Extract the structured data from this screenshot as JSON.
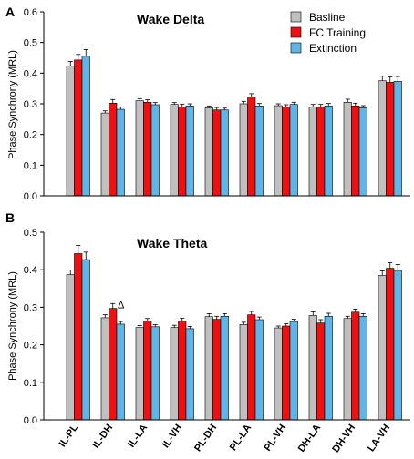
{
  "legend": {
    "placement": "top-right",
    "entries": [
      {
        "name": "Basline",
        "color": "#c0c0c0"
      },
      {
        "name": "FC Training",
        "color": "#ee1111"
      },
      {
        "name": "Extinction",
        "color": "#5fb6e6"
      }
    ]
  },
  "chart_data": [
    {
      "type": "bar",
      "panel_letter": "A",
      "title": "Wake Delta",
      "xlabel": "",
      "ylabel": "Phase Synchrony (MRL)",
      "ylim": [
        0.0,
        0.6
      ],
      "yticks": [
        "0.0",
        "0.1",
        "0.2",
        "0.3",
        "0.4",
        "0.5",
        "0.6"
      ],
      "categories": [
        "IL-PL",
        "IL-DH",
        "IL-LA",
        "IL-VH",
        "PL-DH",
        "PL-LA",
        "PL-VH",
        "DH-LA",
        "DH-VH",
        "LA-VH"
      ],
      "show_category_labels": false,
      "series": [
        {
          "name": "Basline",
          "values": [
            0.423,
            0.27,
            0.31,
            0.298,
            0.287,
            0.3,
            0.294,
            0.29,
            0.305,
            0.375
          ],
          "errors": [
            0.015,
            0.007,
            0.007,
            0.006,
            0.006,
            0.008,
            0.006,
            0.008,
            0.01,
            0.015
          ]
        },
        {
          "name": "FC Training",
          "values": [
            0.443,
            0.302,
            0.305,
            0.29,
            0.28,
            0.322,
            0.29,
            0.29,
            0.293,
            0.37
          ],
          "errors": [
            0.018,
            0.012,
            0.008,
            0.009,
            0.008,
            0.011,
            0.007,
            0.008,
            0.009,
            0.018
          ]
        },
        {
          "name": "Extinction",
          "values": [
            0.455,
            0.282,
            0.297,
            0.293,
            0.28,
            0.293,
            0.298,
            0.293,
            0.287,
            0.373
          ],
          "errors": [
            0.022,
            0.007,
            0.007,
            0.007,
            0.006,
            0.008,
            0.007,
            0.008,
            0.007,
            0.016
          ]
        }
      ],
      "annotations": []
    },
    {
      "type": "bar",
      "panel_letter": "B",
      "title": "Wake Theta",
      "xlabel": "",
      "ylabel": "Phase Synchrony (MRL)",
      "ylim": [
        0.0,
        0.5
      ],
      "yticks": [
        "0.0",
        "0.1",
        "0.2",
        "0.3",
        "0.4",
        "0.5"
      ],
      "categories": [
        "IL-PL",
        "IL-DH",
        "IL-LA",
        "IL-VH",
        "PL-DH",
        "PL-LA",
        "PL-VH",
        "DH-LA",
        "DH-VH",
        "LA-VH"
      ],
      "show_category_labels": true,
      "series": [
        {
          "name": "Basline",
          "values": [
            0.387,
            0.272,
            0.246,
            0.246,
            0.275,
            0.254,
            0.245,
            0.278,
            0.27,
            0.385
          ],
          "errors": [
            0.012,
            0.008,
            0.005,
            0.006,
            0.008,
            0.006,
            0.005,
            0.01,
            0.006,
            0.012
          ]
        },
        {
          "name": "FC Training",
          "values": [
            0.443,
            0.297,
            0.263,
            0.263,
            0.268,
            0.28,
            0.25,
            0.258,
            0.287,
            0.404
          ],
          "errors": [
            0.022,
            0.013,
            0.007,
            0.008,
            0.008,
            0.009,
            0.006,
            0.009,
            0.008,
            0.015
          ]
        },
        {
          "name": "Extinction",
          "values": [
            0.427,
            0.255,
            0.248,
            0.243,
            0.276,
            0.267,
            0.262,
            0.276,
            0.276,
            0.398
          ],
          "errors": [
            0.02,
            0.007,
            0.006,
            0.006,
            0.007,
            0.007,
            0.006,
            0.008,
            0.007,
            0.016
          ]
        }
      ],
      "annotations": [
        {
          "text": "Δ",
          "category": "IL-DH",
          "series": "FC Training"
        }
      ]
    }
  ]
}
